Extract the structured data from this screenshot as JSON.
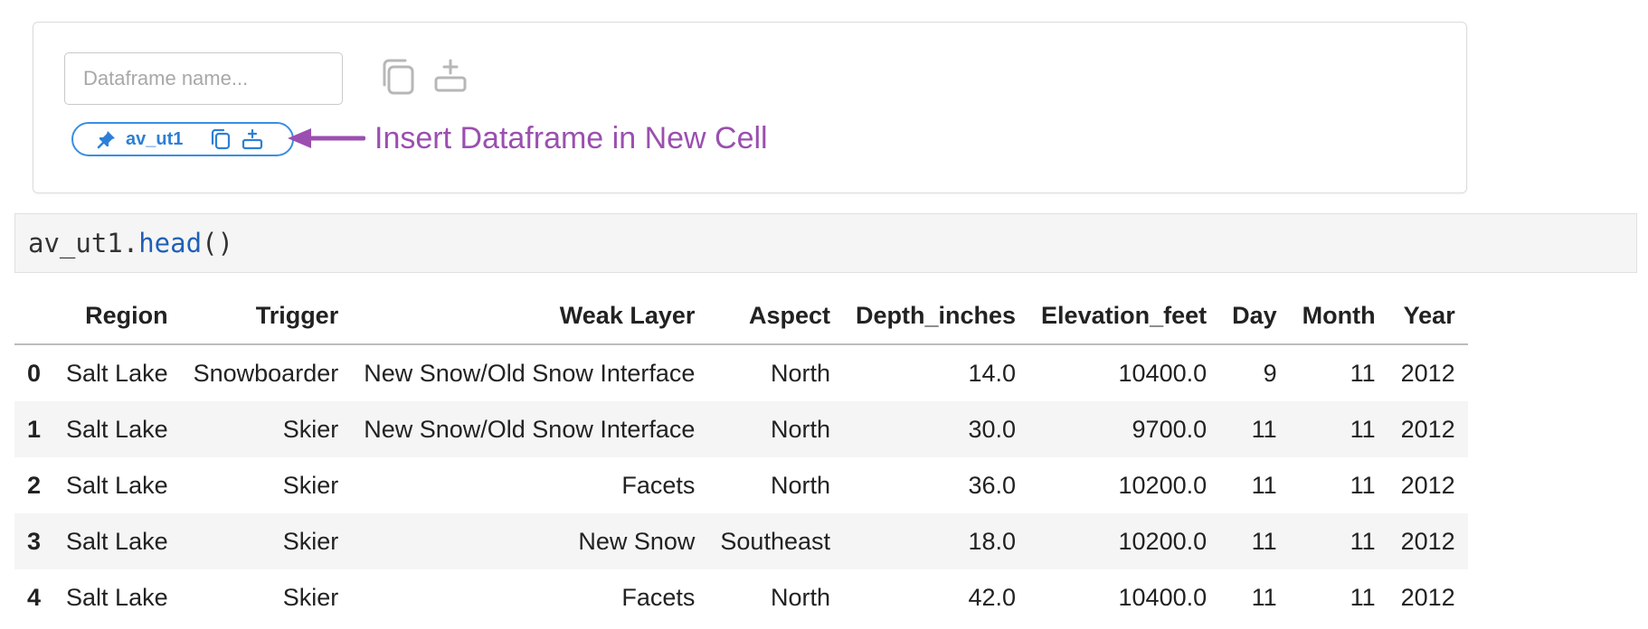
{
  "panel": {
    "name_input_placeholder": "Dataframe name...",
    "name_input_value": "",
    "copy_icon": "copy-icon",
    "insert_icon": "insert-cell-icon",
    "chip": {
      "pin_icon": "pin-icon",
      "label": "av_ut1",
      "copy_icon": "copy-icon",
      "insert_icon": "insert-cell-icon"
    },
    "accent_color": "#3a8ee0"
  },
  "annotation": {
    "text": "Insert Dataframe in New Cell",
    "color": "#9b4fb0"
  },
  "code_cell": {
    "object": "av_ut1.",
    "method": "head",
    "call": "()"
  },
  "table": {
    "columns": [
      "",
      "Region",
      "Trigger",
      "Weak Layer",
      "Aspect",
      "Depth_inches",
      "Elevation_feet",
      "Day",
      "Month",
      "Year"
    ],
    "rows": [
      {
        "index": "0",
        "cells": [
          "Salt Lake",
          "Snowboarder",
          "New Snow/Old Snow Interface",
          "North",
          "14.0",
          "10400.0",
          "9",
          "11",
          "2012"
        ]
      },
      {
        "index": "1",
        "cells": [
          "Salt Lake",
          "Skier",
          "New Snow/Old Snow Interface",
          "North",
          "30.0",
          "9700.0",
          "11",
          "11",
          "2012"
        ]
      },
      {
        "index": "2",
        "cells": [
          "Salt Lake",
          "Skier",
          "Facets",
          "North",
          "36.0",
          "10200.0",
          "11",
          "11",
          "2012"
        ]
      },
      {
        "index": "3",
        "cells": [
          "Salt Lake",
          "Skier",
          "New Snow",
          "Southeast",
          "18.0",
          "10200.0",
          "11",
          "11",
          "2012"
        ]
      },
      {
        "index": "4",
        "cells": [
          "Salt Lake",
          "Skier",
          "Facets",
          "North",
          "42.0",
          "10400.0",
          "11",
          "11",
          "2012"
        ]
      }
    ]
  }
}
